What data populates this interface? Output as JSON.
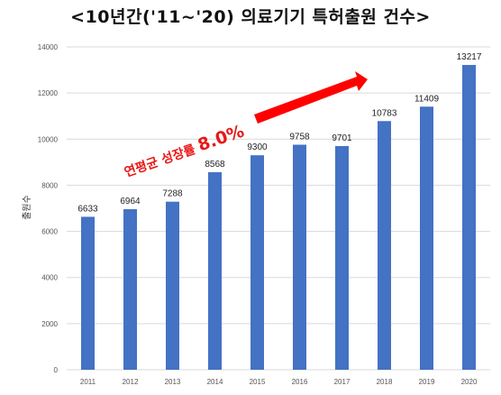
{
  "title": "<10년간('11~'20) 의료기기 특허출원 건수>",
  "annotation": {
    "prefix": "연평균 성장률 ",
    "value": "8.0%",
    "color": "#e81818"
  },
  "colors": {
    "bar": "#4472c4",
    "gridline": "#d9d9d9",
    "arrow": "#ff0000"
  },
  "chart_data": {
    "type": "bar",
    "title": "<10년간('11~'20) 의료기기 특허출원 건수>",
    "xlabel": "",
    "ylabel": "출원수",
    "categories": [
      "2011",
      "2012",
      "2013",
      "2014",
      "2015",
      "2016",
      "2017",
      "2018",
      "2019",
      "2020"
    ],
    "values": [
      6633,
      6964,
      7288,
      8568,
      9300,
      9758,
      9701,
      10783,
      11409,
      13217
    ],
    "data_labels": [
      "6633",
      "6964",
      "7288",
      "8568",
      "9300",
      "9758",
      "9701",
      "10783",
      "11409",
      "13217"
    ],
    "ylim": [
      0,
      14000
    ],
    "yticks": [
      0,
      2000,
      4000,
      6000,
      8000,
      10000,
      12000,
      14000
    ],
    "ytick_labels": [
      "0",
      "2000",
      "4000",
      "6000",
      "8000",
      "10000",
      "12000",
      "14000"
    ],
    "grid": true,
    "legend": "none"
  }
}
